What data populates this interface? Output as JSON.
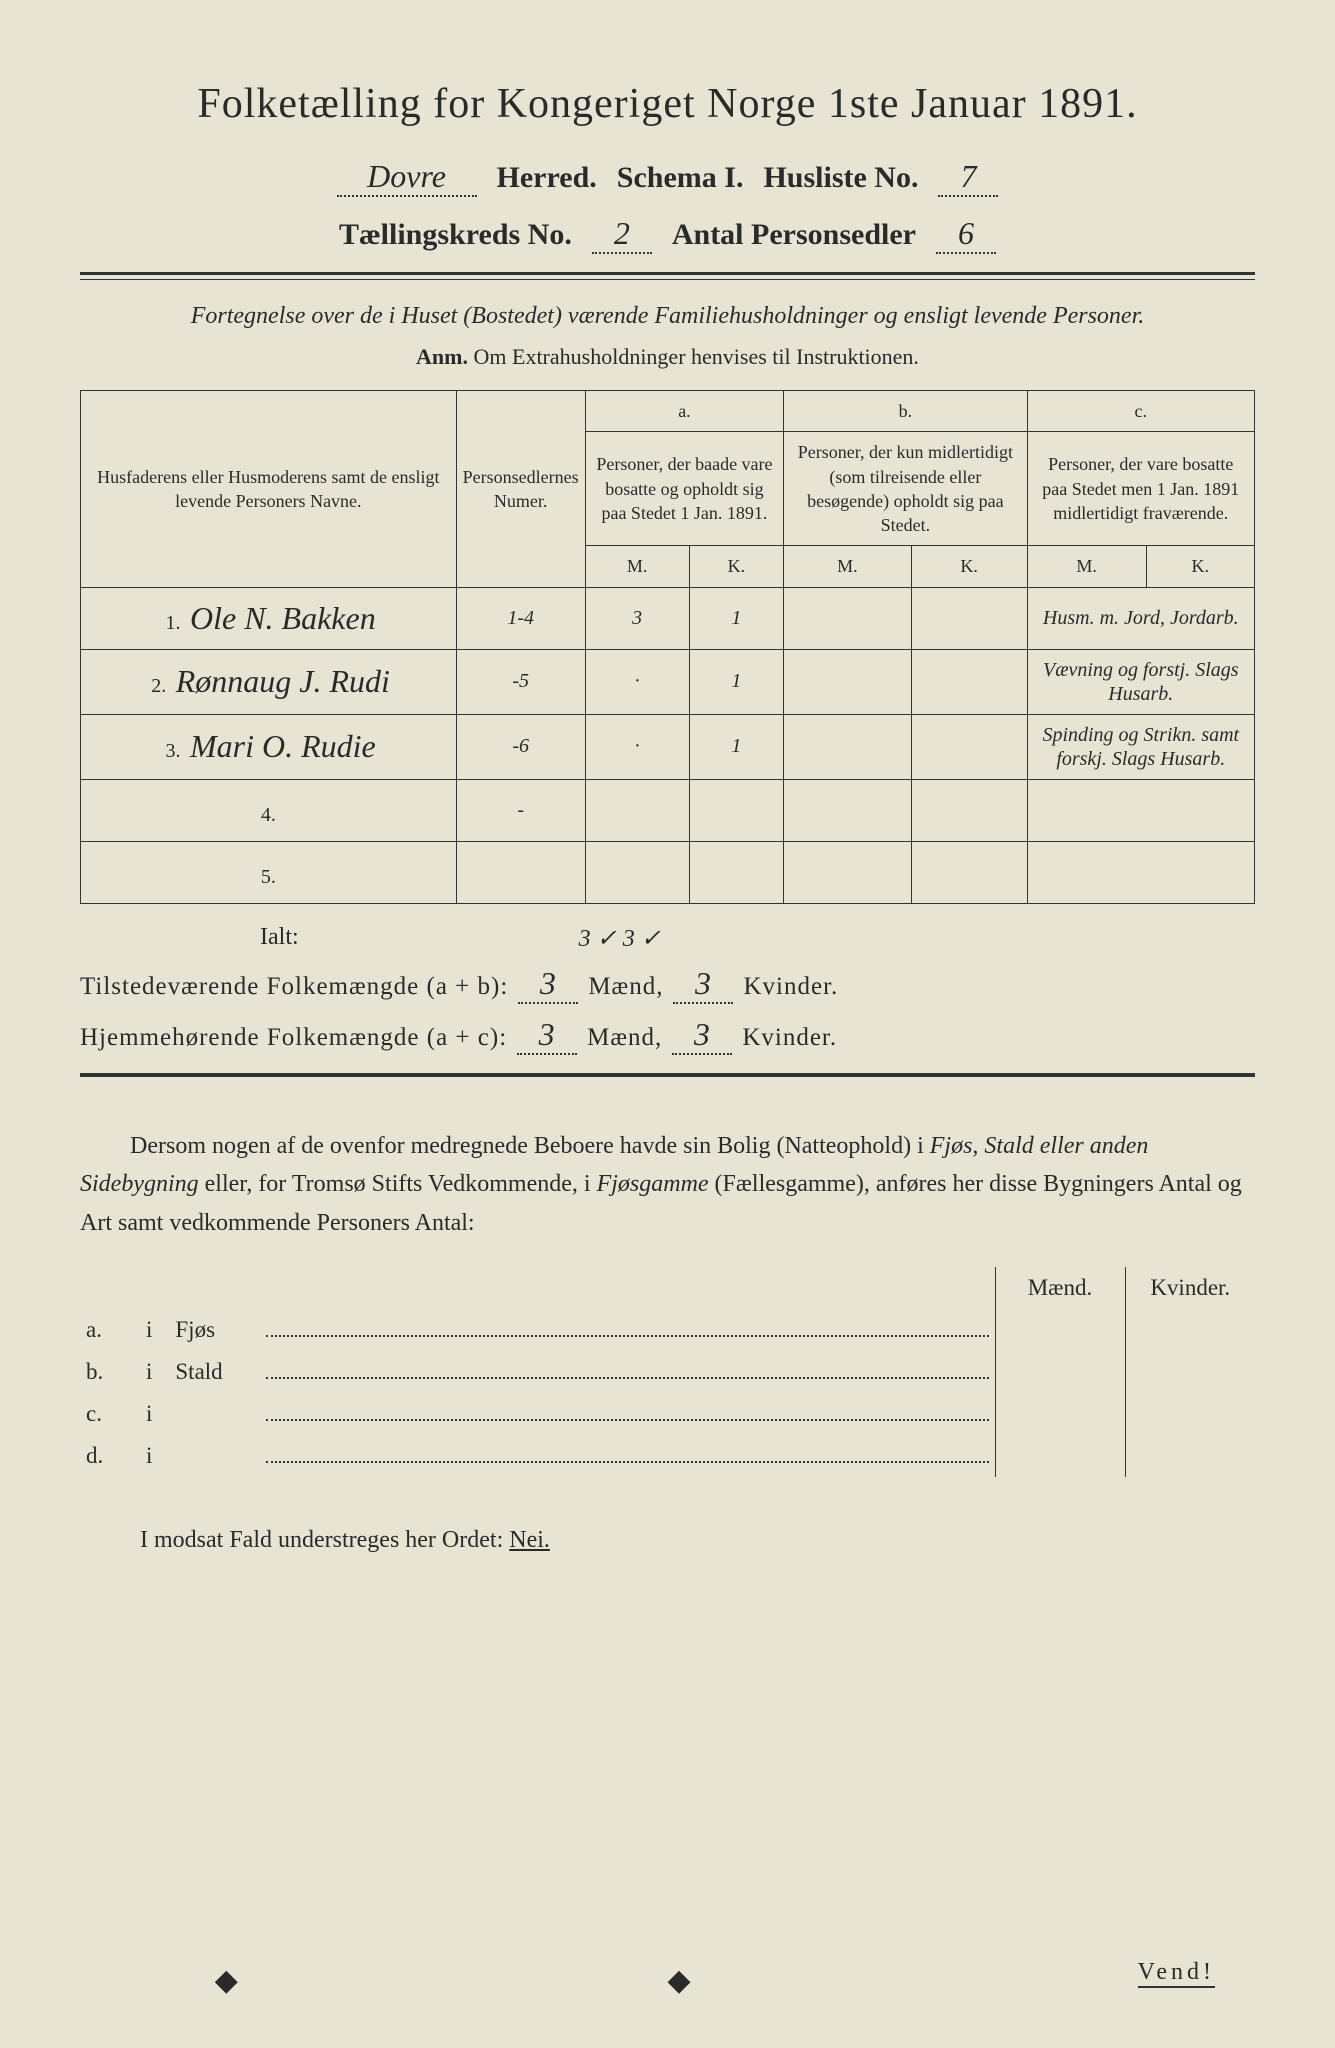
{
  "colors": {
    "background": "#e8e4d4",
    "text": "#2a2a2a",
    "rule": "#333333"
  },
  "title": "Folketælling for Kongeriget Norge 1ste Januar 1891.",
  "header": {
    "herred_value": "Dovre",
    "herred_label": "Herred.",
    "schema_label": "Schema I.",
    "husliste_label": "Husliste No.",
    "husliste_value": "7",
    "kreds_label": "Tællingskreds No.",
    "kreds_value": "2",
    "antal_label": "Antal Personsedler",
    "antal_value": "6"
  },
  "subtitle": "Fortegnelse over de i Huset (Bostedet) værende Familiehusholdninger og ensligt levende Personer.",
  "anm_label": "Anm.",
  "anm_text": "Om Extrahusholdninger henvises til Instruktionen.",
  "table": {
    "col_name": "Husfaderens eller Husmoderens samt de ensligt levende Personers Navne.",
    "col_numer": "Personsedlernes Numer.",
    "col_a_top": "a.",
    "col_a": "Personer, der baade vare bosatte og opholdt sig paa Stedet 1 Jan. 1891.",
    "col_b_top": "b.",
    "col_b": "Personer, der kun midlertidigt (som tilreisende eller besøgende) opholdt sig paa Stedet.",
    "col_c_top": "c.",
    "col_c": "Personer, der vare bosatte paa Stedet men 1 Jan. 1891 midlertidigt fraværende.",
    "m": "M.",
    "k": "K.",
    "rows": [
      {
        "num": "1.",
        "name": "Ole N. Bakken",
        "numer": "1-4",
        "am": "3",
        "ak": "1",
        "bm": "",
        "bk": "",
        "cm": "",
        "ck": "",
        "note": "Husm. m. Jord, Jordarb."
      },
      {
        "num": "2.",
        "name": "Rønnaug J. Rudi",
        "numer": "-5",
        "am": "·",
        "ak": "1",
        "bm": "",
        "bk": "",
        "cm": "",
        "ck": "",
        "note": "Vævning og forstj. Slags Husarb."
      },
      {
        "num": "3.",
        "name": "Mari O. Rudie",
        "numer": "-6",
        "am": "·",
        "ak": "1",
        "bm": "",
        "bk": "",
        "cm": "",
        "ck": "",
        "note": "Spinding og Strikn. samt forskj. Slags Husarb."
      },
      {
        "num": "4.",
        "name": "",
        "numer": "-",
        "am": "",
        "ak": "",
        "bm": "",
        "bk": "",
        "cm": "",
        "ck": "",
        "note": ""
      },
      {
        "num": "5.",
        "name": "",
        "numer": "",
        "am": "",
        "ak": "",
        "bm": "",
        "bk": "",
        "cm": "",
        "ck": "",
        "note": ""
      }
    ]
  },
  "ialt": {
    "label": "Ialt:",
    "value": "3 ✓ 3 ✓"
  },
  "summary1": {
    "label": "Tilstedeværende Folkemængde (a + b):",
    "maend": "3",
    "maend_label": "Mænd,",
    "kvinder": "3",
    "kvinder_label": "Kvinder."
  },
  "summary2": {
    "label": "Hjemmehørende Folkemængde (a + c):",
    "maend": "3",
    "maend_label": "Mænd,",
    "kvinder": "3",
    "kvinder_label": "Kvinder."
  },
  "paragraph": {
    "p1": "Dersom nogen af de ovenfor medregnede Beboere havde sin Bolig (Natteophold) i ",
    "i1": "Fjøs, Stald eller anden Sidebygning",
    "p2": " eller, for Tromsø Stifts Vedkommende, i ",
    "i2": "Fjøsgamme",
    "p3": " (Fællesgamme), anføres her disse Bygningers Antal og Art samt vedkommende Personers Antal:"
  },
  "side": {
    "maend": "Mænd.",
    "kvinder": "Kvinder.",
    "rows": [
      {
        "key": "a.",
        "i": "i",
        "label": "Fjøs"
      },
      {
        "key": "b.",
        "i": "i",
        "label": "Stald"
      },
      {
        "key": "c.",
        "i": "i",
        "label": ""
      },
      {
        "key": "d.",
        "i": "i",
        "label": ""
      }
    ]
  },
  "modsat": {
    "text": "I modsat Fald understreges her Ordet: ",
    "nei": "Nei."
  },
  "vend": "Vend!"
}
